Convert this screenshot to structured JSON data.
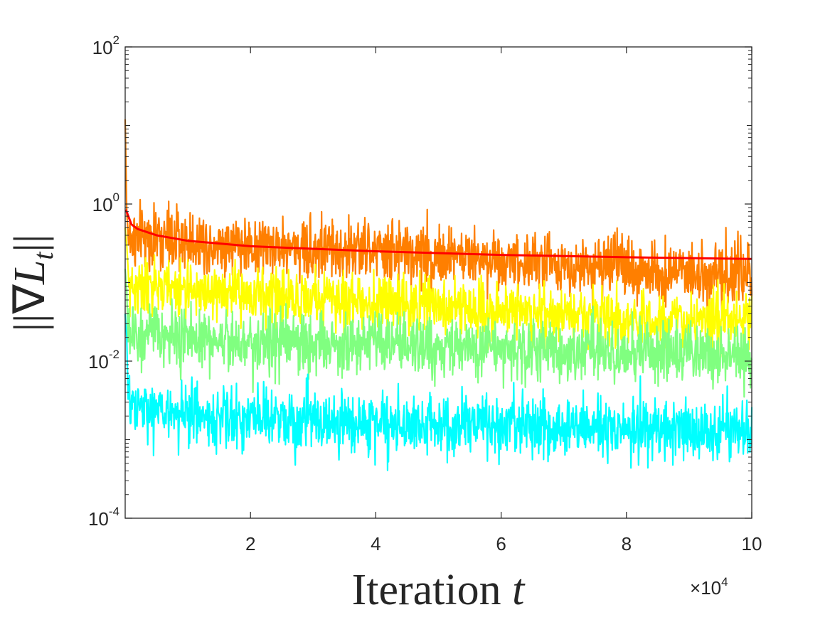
{
  "chart_data": {
    "type": "line",
    "title": "",
    "xlabel": {
      "text": "Iteration ",
      "var": "t"
    },
    "ylabel": {
      "bar_left": "||",
      "nabla": "∇",
      "var": "L",
      "sub": "t",
      "bar_right": "||"
    },
    "x_multiplier": {
      "times": "×",
      "base": "10",
      "exponent": "4"
    },
    "xlim": [
      0,
      100000
    ],
    "ylim": [
      0.0001,
      100
    ],
    "yscale": "log",
    "grid": false,
    "legend": "none",
    "x_ticks": [
      {
        "value": 20000,
        "label": "2"
      },
      {
        "value": 40000,
        "label": "4"
      },
      {
        "value": 60000,
        "label": "6"
      },
      {
        "value": 80000,
        "label": "8"
      },
      {
        "value": 100000,
        "label": "10"
      }
    ],
    "y_ticks": [
      {
        "value": 0.0001,
        "base": "10",
        "exp": "-4"
      },
      {
        "value": 0.01,
        "base": "10",
        "exp": "-2"
      },
      {
        "value": 1,
        "base": "10",
        "exp": "0"
      },
      {
        "value": 100,
        "base": "10",
        "exp": "2"
      }
    ],
    "series": [
      {
        "color": "#ff7f00",
        "style": "noisy",
        "peak": 12,
        "start": 0.8,
        "level": [
          0.38,
          0.3,
          0.25,
          0.2,
          0.15,
          0.12
        ],
        "spread": 0.5
      },
      {
        "color": "#ffff00",
        "style": "noisy",
        "peak": 0.5,
        "start": 0.3,
        "level": [
          0.09,
          0.07,
          0.055,
          0.045,
          0.035,
          0.03
        ],
        "spread": 0.45
      },
      {
        "color": "#80ff80",
        "style": "noisy",
        "peak": 0.15,
        "start": 0.08,
        "level": [
          0.022,
          0.018,
          0.016,
          0.014,
          0.013,
          0.012
        ],
        "spread": 0.5
      },
      {
        "color": "#00ffff",
        "style": "noisy",
        "peak": 0.04,
        "start": 0.02,
        "level": [
          0.0025,
          0.0018,
          0.0016,
          0.0015,
          0.0014,
          0.0013
        ],
        "spread": 0.5
      },
      {
        "color": "#ff0000",
        "style": "smooth",
        "x": [
          100,
          1000,
          2000,
          5000,
          10000,
          20000,
          40000,
          60000,
          80000,
          100000
        ],
        "values": [
          0.85,
          0.55,
          0.48,
          0.4,
          0.34,
          0.29,
          0.25,
          0.225,
          0.21,
          0.2
        ]
      }
    ]
  }
}
